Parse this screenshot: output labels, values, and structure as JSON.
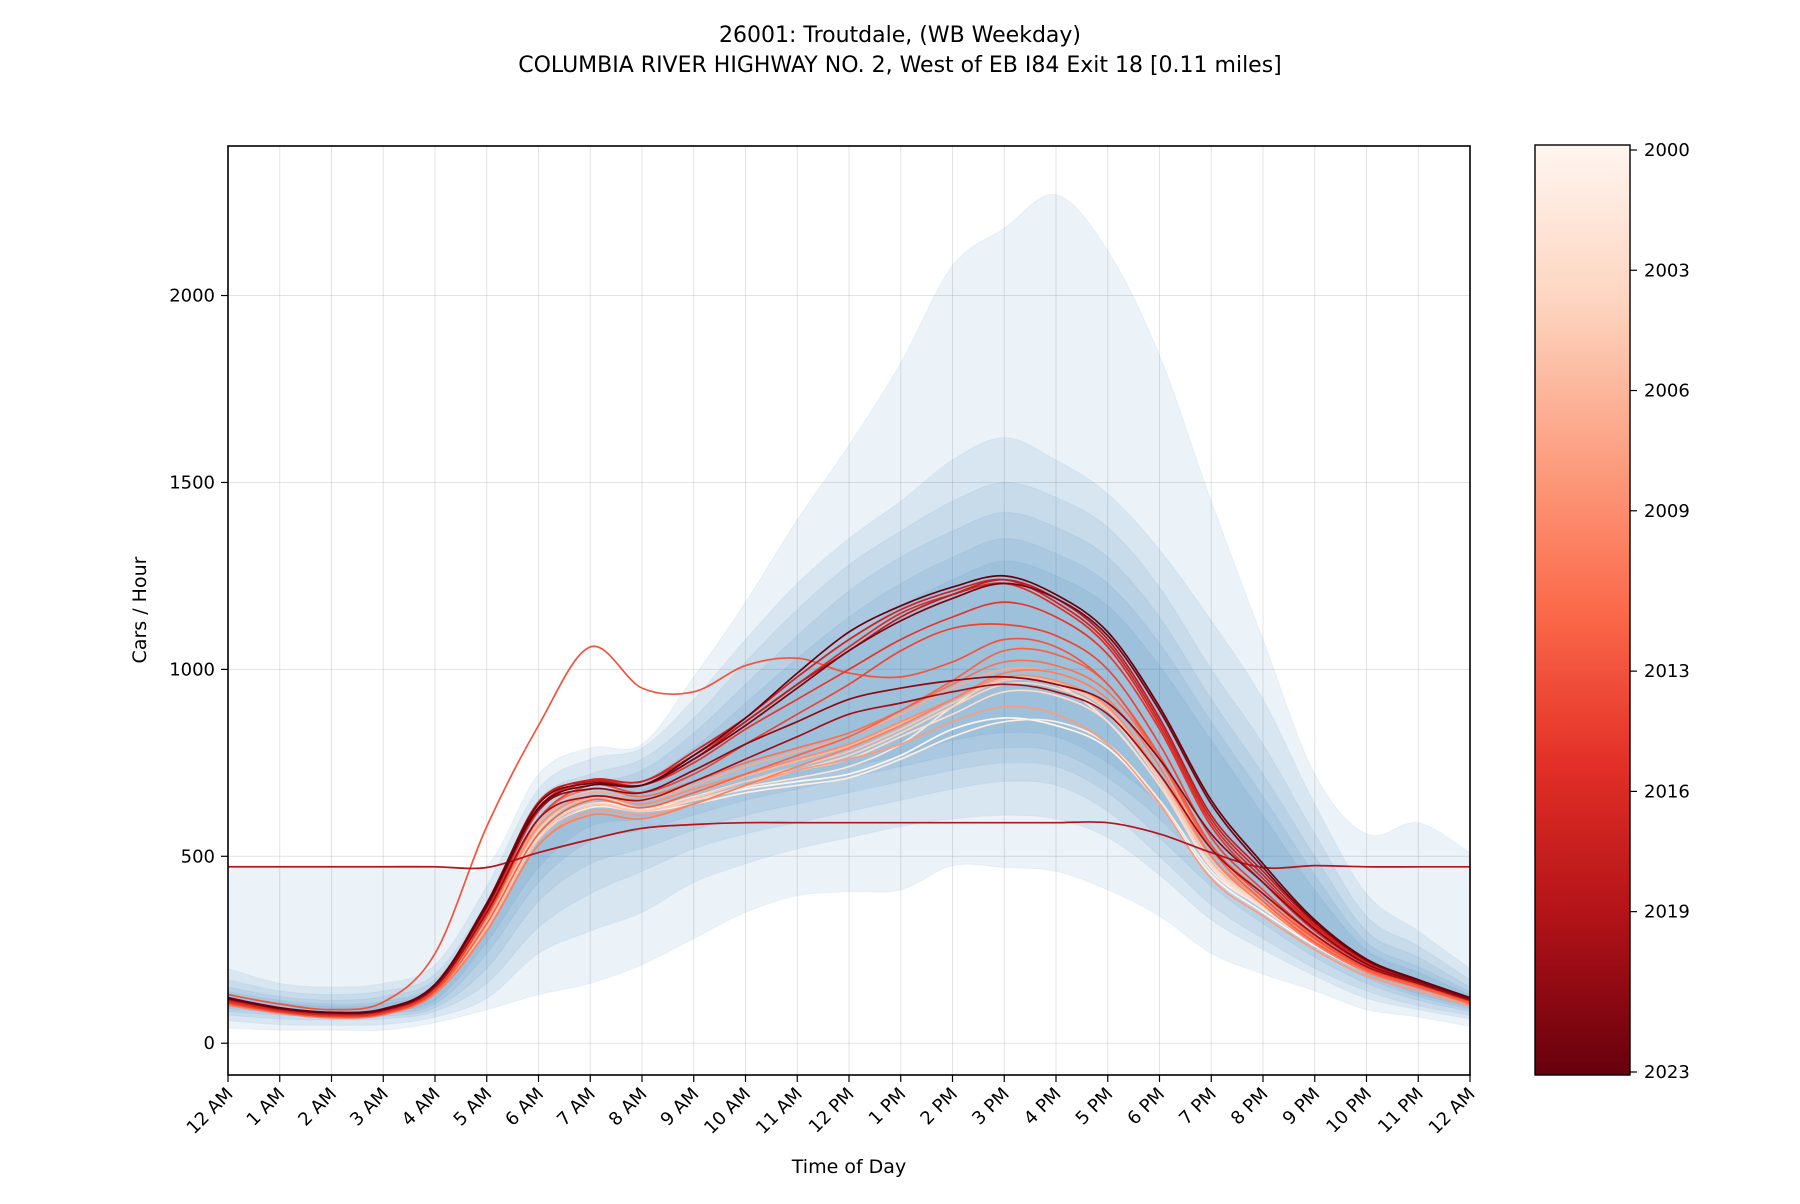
{
  "chart_data": {
    "type": "line",
    "title": "26001: Troutdale, (WB Weekday)",
    "subtitle": "COLUMBIA RIVER HIGHWAY NO. 2, West of EB I84 Exit 18 [0.11 miles]",
    "xlabel": "Time of Day",
    "ylabel": "Cars / Hour",
    "x_tick_labels": [
      "12 AM",
      "1 AM",
      "2 AM",
      "3 AM",
      "4 AM",
      "5 AM",
      "6 AM",
      "7 AM",
      "8 AM",
      "9 AM",
      "10 AM",
      "11 AM",
      "12 PM",
      "1 PM",
      "2 PM",
      "3 PM",
      "4 PM",
      "5 PM",
      "6 PM",
      "7 PM",
      "8 PM",
      "9 PM",
      "10 PM",
      "11 PM",
      "12 AM"
    ],
    "xlim": [
      0,
      24
    ],
    "ylim": [
      -85,
      2400
    ],
    "y_ticks": [
      0,
      500,
      1000,
      1500,
      2000
    ],
    "grid": true,
    "colorbar": {
      "label_values": [
        2000,
        2003,
        2006,
        2009,
        2013,
        2016,
        2019,
        2023
      ],
      "range": [
        2000,
        2023
      ],
      "colormap": [
        "#fff5f0",
        "#fdd5c0",
        "#fca082",
        "#fb6a4a",
        "#e32f27",
        "#b11218",
        "#67000d"
      ]
    },
    "band_color": "#2171b5",
    "band_hours": [
      0,
      1,
      2,
      3,
      4,
      5,
      6,
      7,
      8,
      9,
      10,
      11,
      12,
      13,
      14,
      15,
      16,
      17,
      18,
      19,
      20,
      21,
      22,
      23,
      24
    ],
    "bands": [
      {
        "lower": [
          40,
          35,
          35,
          35,
          55,
          90,
          130,
          160,
          210,
          280,
          350,
          395,
          405,
          410,
          475,
          470,
          460,
          410,
          340,
          240,
          185,
          140,
          90,
          70,
          45
        ],
        "upper": [
          475,
          475,
          475,
          475,
          475,
          475,
          720,
          790,
          800,
          980,
          1180,
          1400,
          1600,
          1820,
          2080,
          2180,
          2270,
          2120,
          1840,
          1450,
          1080,
          720,
          560,
          590,
          510
        ]
      },
      {
        "lower": [
          60,
          50,
          48,
          50,
          70,
          120,
          240,
          300,
          350,
          430,
          480,
          520,
          550,
          580,
          600,
          610,
          600,
          550,
          450,
          330,
          250,
          180,
          120,
          90,
          65
        ],
        "upper": [
          200,
          160,
          150,
          160,
          210,
          420,
          680,
          760,
          790,
          920,
          1080,
          1230,
          1350,
          1450,
          1560,
          1620,
          1560,
          1470,
          1320,
          1130,
          920,
          640,
          400,
          300,
          200
        ]
      },
      {
        "lower": [
          75,
          65,
          62,
          65,
          85,
          160,
          310,
          400,
          460,
          520,
          560,
          590,
          620,
          650,
          680,
          700,
          690,
          620,
          500,
          370,
          280,
          200,
          140,
          100,
          75
        ],
        "upper": [
          170,
          140,
          130,
          140,
          185,
          380,
          650,
          720,
          760,
          870,
          1020,
          1160,
          1280,
          1370,
          1450,
          1500,
          1460,
          1380,
          1220,
          1000,
          800,
          560,
          340,
          260,
          170
        ]
      },
      {
        "lower": [
          85,
          75,
          70,
          72,
          95,
          200,
          380,
          480,
          520,
          570,
          610,
          640,
          670,
          700,
          730,
          750,
          740,
          670,
          550,
          420,
          320,
          230,
          160,
          115,
          85
        ],
        "upper": [
          150,
          125,
          115,
          125,
          170,
          350,
          620,
          690,
          730,
          830,
          960,
          1090,
          1210,
          1300,
          1370,
          1420,
          1380,
          1300,
          1140,
          920,
          720,
          500,
          300,
          230,
          150
        ]
      },
      {
        "lower": [
          92,
          82,
          76,
          80,
          105,
          240,
          430,
          540,
          570,
          610,
          650,
          680,
          710,
          740,
          770,
          790,
          780,
          710,
          600,
          460,
          350,
          250,
          175,
          125,
          92
        ],
        "upper": [
          138,
          115,
          105,
          112,
          155,
          320,
          590,
          665,
          700,
          790,
          910,
          1030,
          1140,
          1230,
          1300,
          1350,
          1310,
          1230,
          1070,
          860,
          660,
          450,
          270,
          205,
          138
        ]
      },
      {
        "lower": [
          98,
          88,
          82,
          86,
          115,
          270,
          470,
          580,
          600,
          640,
          680,
          710,
          740,
          770,
          810,
          830,
          820,
          750,
          640,
          490,
          370,
          265,
          185,
          132,
          98
        ],
        "upper": [
          130,
          108,
          98,
          105,
          145,
          300,
          560,
          640,
          675,
          760,
          870,
          980,
          1080,
          1170,
          1240,
          1290,
          1250,
          1170,
          1010,
          810,
          610,
          410,
          250,
          190,
          130
        ]
      }
    ],
    "series": [
      {
        "year": 2000,
        "values": [
          110,
          85,
          72,
          80,
          140,
          330,
          560,
          640,
          630,
          650,
          680,
          700,
          720,
          770,
          840,
          870,
          850,
          790,
          640,
          450,
          350,
          260,
          190,
          150,
          110
        ]
      },
      {
        "year": 2001,
        "values": [
          105,
          82,
          70,
          78,
          138,
          320,
          550,
          630,
          620,
          640,
          670,
          690,
          710,
          760,
          820,
          860,
          860,
          800,
          650,
          460,
          360,
          265,
          190,
          150,
          108
        ]
      },
      {
        "year": 2002,
        "values": [
          108,
          84,
          72,
          80,
          140,
          325,
          560,
          640,
          625,
          650,
          685,
          710,
          740,
          800,
          900,
          980,
          960,
          860,
          690,
          470,
          360,
          265,
          190,
          150,
          110
        ]
      },
      {
        "year": 2003,
        "values": [
          108,
          84,
          72,
          80,
          142,
          330,
          570,
          660,
          630,
          660,
          700,
          730,
          760,
          820,
          880,
          940,
          930,
          860,
          690,
          475,
          365,
          268,
          192,
          150,
          110
        ]
      },
      {
        "year": 2004,
        "values": [
          106,
          83,
          71,
          79,
          139,
          320,
          555,
          640,
          620,
          650,
          690,
          730,
          770,
          830,
          900,
          960,
          950,
          880,
          700,
          480,
          370,
          270,
          195,
          152,
          110
        ]
      },
      {
        "year": 2005,
        "values": [
          104,
          82,
          70,
          78,
          136,
          310,
          545,
          635,
          620,
          655,
          700,
          740,
          780,
          840,
          910,
          970,
          960,
          890,
          710,
          490,
          375,
          272,
          196,
          152,
          108
        ]
      },
      {
        "year": 2006,
        "values": [
          107,
          84,
          72,
          80,
          140,
          330,
          575,
          655,
          630,
          670,
          715,
          755,
          795,
          855,
          920,
          975,
          965,
          895,
          720,
          500,
          380,
          275,
          198,
          153,
          110
        ]
      },
      {
        "year": 2007,
        "values": [
          110,
          86,
          74,
          82,
          145,
          340,
          590,
          670,
          650,
          690,
          740,
          780,
          820,
          880,
          950,
          1000,
          990,
          920,
          740,
          520,
          390,
          280,
          200,
          155,
          112
        ]
      },
      {
        "year": 2008,
        "values": [
          105,
          82,
          70,
          78,
          135,
          300,
          530,
          620,
          610,
          640,
          690,
          730,
          760,
          800,
          860,
          900,
          880,
          800,
          640,
          440,
          340,
          250,
          180,
          140,
          100
        ]
      },
      {
        "year": 2009,
        "values": [
          108,
          84,
          72,
          80,
          142,
          335,
          580,
          660,
          640,
          680,
          720,
          760,
          800,
          860,
          920,
          980,
          970,
          900,
          720,
          500,
          380,
          275,
          198,
          153,
          110
        ]
      },
      {
        "year": 2010,
        "values": [
          102,
          80,
          68,
          76,
          132,
          300,
          530,
          610,
          600,
          640,
          690,
          740,
          790,
          850,
          920,
          990,
          990,
          920,
          740,
          500,
          370,
          265,
          190,
          148,
          105
        ]
      },
      {
        "year": 2011,
        "values": [
          110,
          86,
          74,
          82,
          146,
          345,
          600,
          680,
          660,
          700,
          750,
          790,
          830,
          890,
          960,
          1020,
          1010,
          940,
          760,
          530,
          400,
          285,
          202,
          157,
          113
        ]
      },
      {
        "year": 2012,
        "values": [
          106,
          83,
          71,
          79,
          138,
          320,
          560,
          650,
          630,
          670,
          720,
          770,
          820,
          890,
          970,
          1050,
          1040,
          960,
          760,
          520,
          380,
          270,
          195,
          150,
          108
        ]
      },
      {
        "year": 2013,
        "values": [
          130,
          105,
          90,
          110,
          240,
          580,
          850,
          1060,
          950,
          940,
          1010,
          1030,
          990,
          980,
          1020,
          1080,
          1060,
          960,
          770,
          530,
          390,
          280,
          200,
          155,
          112
        ]
      },
      {
        "year": 2014,
        "values": [
          108,
          84,
          72,
          80,
          142,
          340,
          600,
          690,
          670,
          720,
          800,
          880,
          960,
          1050,
          1110,
          1120,
          1090,
          1000,
          800,
          550,
          410,
          290,
          205,
          158,
          113
        ]
      },
      {
        "year": 2015,
        "values": [
          112,
          87,
          75,
          83,
          148,
          355,
          620,
          700,
          690,
          750,
          840,
          920,
          1000,
          1080,
          1140,
          1180,
          1140,
          1040,
          840,
          580,
          430,
          300,
          210,
          160,
          115
        ]
      },
      {
        "year": 2016,
        "values": [
          114,
          88,
          76,
          85,
          150,
          360,
          630,
          700,
          700,
          770,
          860,
          960,
          1060,
          1150,
          1200,
          1230,
          1170,
          1060,
          850,
          590,
          440,
          310,
          215,
          163,
          117
        ]
      },
      {
        "year": 2017,
        "values": [
          116,
          90,
          78,
          87,
          152,
          365,
          640,
          705,
          700,
          780,
          870,
          980,
          1080,
          1160,
          1210,
          1240,
          1180,
          1070,
          860,
          600,
          450,
          315,
          218,
          165,
          118
        ]
      },
      {
        "year": 2018,
        "values": [
          118,
          92,
          80,
          88,
          155,
          370,
          645,
          700,
          690,
          760,
          860,
          960,
          1050,
          1140,
          1200,
          1240,
          1190,
          1080,
          870,
          610,
          460,
          320,
          220,
          168,
          120
        ]
      },
      {
        "year": 2019,
        "values": [
          472,
          472,
          472,
          472,
          472,
          470,
          510,
          545,
          575,
          585,
          590,
          590,
          590,
          590,
          590,
          590,
          590,
          590,
          560,
          510,
          470,
          475,
          472,
          472,
          472
        ]
      },
      {
        "year": 2020,
        "values": [
          118,
          92,
          80,
          88,
          150,
          350,
          600,
          660,
          650,
          700,
          760,
          820,
          880,
          910,
          940,
          960,
          940,
          880,
          720,
          520,
          400,
          290,
          205,
          160,
          115
        ]
      },
      {
        "year": 2021,
        "values": [
          120,
          94,
          82,
          90,
          155,
          365,
          625,
          680,
          670,
          730,
          800,
          860,
          920,
          950,
          970,
          980,
          960,
          910,
          760,
          560,
          430,
          305,
          212,
          164,
          118
        ]
      },
      {
        "year": 2022,
        "values": [
          122,
          95,
          83,
          92,
          158,
          375,
          640,
          695,
          690,
          760,
          850,
          950,
          1050,
          1130,
          1190,
          1230,
          1190,
          1090,
          890,
          640,
          470,
          325,
          222,
          168,
          120
        ]
      },
      {
        "year": 2023,
        "values": [
          120,
          94,
          82,
          90,
          156,
          370,
          630,
          690,
          690,
          770,
          870,
          990,
          1100,
          1170,
          1220,
          1250,
          1200,
          1100,
          900,
          650,
          480,
          330,
          225,
          170,
          122
        ]
      }
    ]
  }
}
